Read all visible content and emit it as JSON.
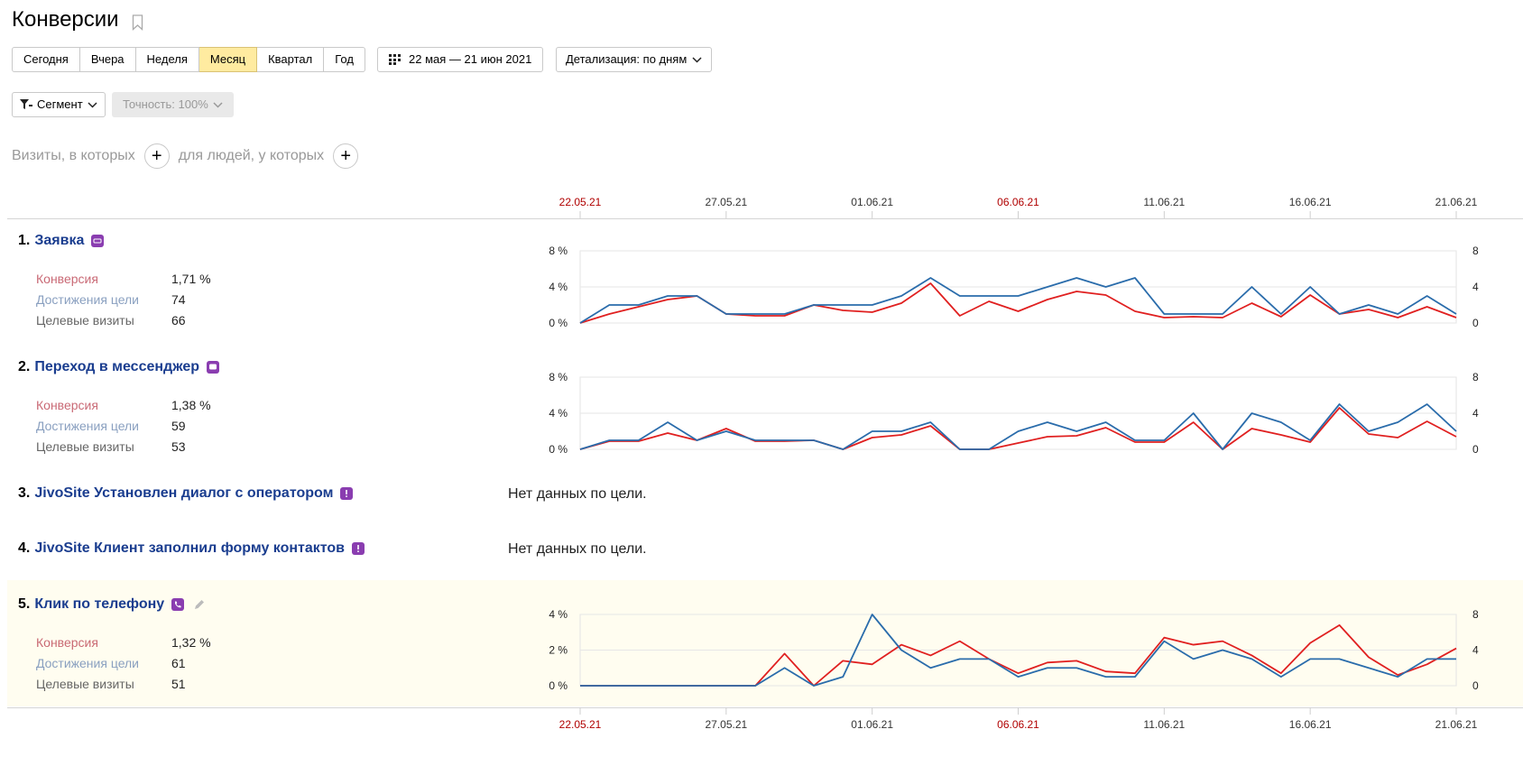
{
  "page": {
    "title": "Конверсии"
  },
  "period_buttons": [
    "Сегодня",
    "Вчера",
    "Неделя",
    "Месяц",
    "Квартал",
    "Год"
  ],
  "period_active": "Месяц",
  "date_range": "22 мая — 21 июн 2021",
  "detail": "Детализация: по дням",
  "segment_label": "Сегмент",
  "accuracy_label": "Точность: 100%",
  "filters": {
    "visits_label": "Визиты, в которых",
    "people_label": "для людей, у которых"
  },
  "x_axis_dates": [
    "22.05.21",
    "27.05.21",
    "01.06.21",
    "06.06.21",
    "11.06.21",
    "16.06.21",
    "21.06.21"
  ],
  "colors": {
    "conversion_line": "#e02020",
    "visits_line": "#2a6cab",
    "weekend_date": "#b00000"
  },
  "metric_labels": {
    "conversion": "Конверсия",
    "achievements": "Достижения цели",
    "target_visits": "Целевые визиты"
  },
  "no_data_text": "Нет данных по цели.",
  "goals": [
    {
      "num": "1.",
      "name": "Заявка",
      "icon": "form-icon",
      "conversion": "1,71 %",
      "achievements": "74",
      "target_visits": "66",
      "y_left": [
        "8 %",
        "4 %",
        "0 %"
      ],
      "y_right": [
        "8",
        "4",
        "0"
      ]
    },
    {
      "num": "2.",
      "name": "Переход в мессенджер",
      "icon": "chat-icon",
      "conversion": "1,38 %",
      "achievements": "59",
      "target_visits": "53",
      "y_left": [
        "8 %",
        "4 %",
        "0 %"
      ],
      "y_right": [
        "8",
        "4",
        "0"
      ]
    },
    {
      "num": "3.",
      "name": "JivoSite Установлен диалог с оператором",
      "icon": "alert-icon"
    },
    {
      "num": "4.",
      "name": "JivoSite Клиент заполнил форму контактов",
      "icon": "alert-icon"
    },
    {
      "num": "5.",
      "name": "Клик по телефону",
      "icon": "phone-icon",
      "conversion": "1,32 %",
      "achievements": "61",
      "target_visits": "51",
      "y_left": [
        "4 %",
        "2 %",
        "0 %"
      ],
      "y_right": [
        "8",
        "4",
        "0"
      ]
    }
  ],
  "chart_data": [
    {
      "type": "line",
      "title": "Заявка",
      "x": [
        "22.05",
        "23.05",
        "24.05",
        "25.05",
        "26.05",
        "27.05",
        "28.05",
        "29.05",
        "30.05",
        "31.05",
        "01.06",
        "02.06",
        "03.06",
        "04.06",
        "05.06",
        "06.06",
        "07.06",
        "08.06",
        "09.06",
        "10.06",
        "11.06",
        "12.06",
        "13.06",
        "14.06",
        "15.06",
        "16.06",
        "17.06",
        "18.06",
        "19.06",
        "20.06",
        "21.06"
      ],
      "ylim_left": [
        0,
        8
      ],
      "ylim_right": [
        0,
        8
      ],
      "series": [
        {
          "axis": "left",
          "values": [
            0,
            1,
            1.8,
            2.6,
            3,
            1,
            0.8,
            0.8,
            2,
            1.4,
            1.2,
            2.2,
            4.4,
            0.8,
            2.4,
            1.3,
            2.6,
            3.5,
            3.1,
            1.3,
            0.6,
            0.7,
            0.6,
            2.2,
            0.7,
            3.1,
            1,
            1.5,
            0.6,
            1.8,
            0.6
          ]
        },
        {
          "axis": "right",
          "values": [
            0,
            2,
            2,
            3,
            3,
            1,
            1,
            1,
            2,
            2,
            2,
            3,
            5,
            3,
            3,
            3,
            4,
            5,
            4,
            5,
            1,
            1,
            1,
            4,
            1,
            4,
            1,
            2,
            1,
            3,
            1
          ]
        }
      ]
    },
    {
      "type": "line",
      "title": "Переход в мессенджер",
      "x": [
        "22.05",
        "23.05",
        "24.05",
        "25.05",
        "26.05",
        "27.05",
        "28.05",
        "29.05",
        "30.05",
        "31.05",
        "01.06",
        "02.06",
        "03.06",
        "04.06",
        "05.06",
        "06.06",
        "07.06",
        "08.06",
        "09.06",
        "10.06",
        "11.06",
        "12.06",
        "13.06",
        "14.06",
        "15.06",
        "16.06",
        "17.06",
        "18.06",
        "19.06",
        "20.06",
        "21.06"
      ],
      "ylim_left": [
        0,
        8
      ],
      "ylim_right": [
        0,
        8
      ],
      "series": [
        {
          "axis": "left",
          "values": [
            0,
            0.9,
            0.9,
            1.8,
            1,
            2.3,
            0.9,
            0.9,
            1,
            0,
            1.3,
            1.6,
            2.6,
            0,
            0,
            0.7,
            1.4,
            1.5,
            2.4,
            0.8,
            0.8,
            3,
            0,
            2.3,
            1.6,
            0.8,
            4.6,
            1.7,
            1.3,
            3.1,
            1.4
          ]
        },
        {
          "axis": "right",
          "values": [
            0,
            1,
            1,
            3,
            1,
            2,
            1,
            1,
            1,
            0,
            2,
            2,
            3,
            0,
            0,
            2,
            3,
            2,
            3,
            1,
            1,
            4,
            0,
            4,
            3,
            1,
            5,
            2,
            3,
            5,
            2
          ]
        }
      ]
    },
    {
      "type": "line",
      "title": "Клик по телефону",
      "x": [
        "22.05",
        "23.05",
        "24.05",
        "25.05",
        "26.05",
        "27.05",
        "28.05",
        "29.05",
        "30.05",
        "31.05",
        "01.06",
        "02.06",
        "03.06",
        "04.06",
        "05.06",
        "06.06",
        "07.06",
        "08.06",
        "09.06",
        "10.06",
        "11.06",
        "12.06",
        "13.06",
        "14.06",
        "15.06",
        "16.06",
        "17.06",
        "18.06",
        "19.06",
        "20.06",
        "21.06"
      ],
      "ylim_left": [
        0,
        4
      ],
      "ylim_right": [
        0,
        8
      ],
      "series": [
        {
          "axis": "left",
          "values": [
            0,
            0,
            0,
            0,
            0,
            0,
            0,
            1.8,
            0,
            1.4,
            1.2,
            2.3,
            1.7,
            2.5,
            1.5,
            0.7,
            1.3,
            1.4,
            0.8,
            0.7,
            2.7,
            2.3,
            2.5,
            1.7,
            0.7,
            2.4,
            3.4,
            1.6,
            0.6,
            1.2,
            2.1
          ]
        },
        {
          "axis": "right",
          "values": [
            0,
            0,
            0,
            0,
            0,
            0,
            0,
            2,
            0,
            1,
            8,
            4,
            2,
            3,
            3,
            1,
            2,
            2,
            1,
            1,
            5,
            3,
            4,
            3,
            1,
            3,
            3,
            2,
            1,
            3,
            3
          ]
        }
      ]
    }
  ]
}
